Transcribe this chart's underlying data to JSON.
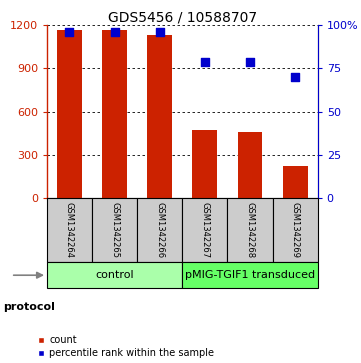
{
  "title": "GDS5456 / 10588707",
  "samples": [
    "GSM1342264",
    "GSM1342265",
    "GSM1342266",
    "GSM1342267",
    "GSM1342268",
    "GSM1342269"
  ],
  "bar_heights": [
    1170,
    1170,
    1130,
    470,
    460,
    220
  ],
  "percentile_ranks": [
    96,
    96,
    96,
    79,
    79,
    70
  ],
  "ylim_left": [
    0,
    1200
  ],
  "ylim_right": [
    0,
    100
  ],
  "yticks_left": [
    0,
    300,
    600,
    900,
    1200
  ],
  "yticks_right": [
    0,
    25,
    50,
    75,
    100
  ],
  "bar_color": "#cc2200",
  "dot_color": "#0000cc",
  "dot_size": 30,
  "protocol_groups": [
    {
      "label": "control",
      "indices": [
        0,
        1,
        2
      ],
      "color": "#aaffaa"
    },
    {
      "label": "pMIG-TGIF1 transduced",
      "indices": [
        3,
        4,
        5
      ],
      "color": "#66ff66"
    }
  ],
  "protocol_label": "protocol",
  "sample_box_color": "#cccccc",
  "background_color": "#ffffff",
  "left_ytick_color": "#cc2200",
  "right_ytick_color": "#0000cc",
  "bar_width": 0.55,
  "title_fontsize": 10,
  "tick_fontsize": 8,
  "sample_fontsize": 6,
  "legend_fontsize": 7,
  "protocol_fontsize": 8,
  "group_label_fontsize": 8
}
